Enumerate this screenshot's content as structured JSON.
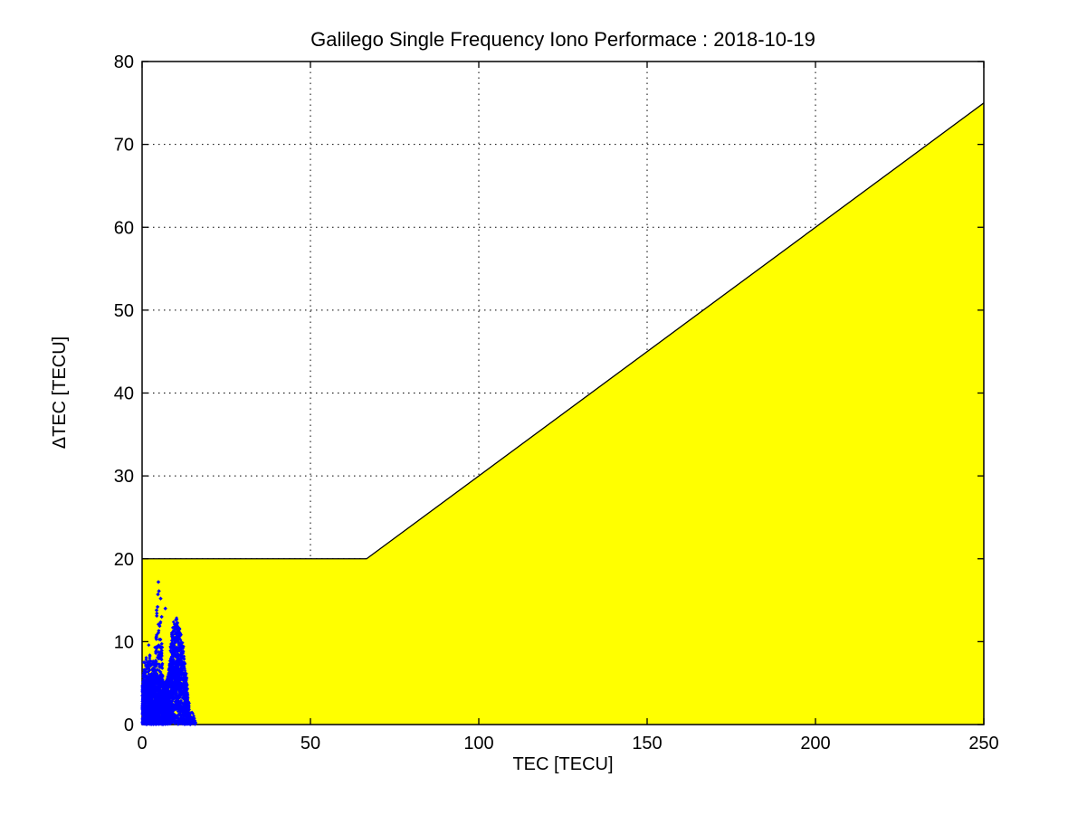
{
  "window": {
    "background_color": "#ffffff"
  },
  "chart_data": {
    "type": "scatter",
    "title": "Galilego Single Frequency Iono Performace : 2018-10-19",
    "xlabel": "TEC [TECU]",
    "ylabel": "ΔTEC [TECU]",
    "xlim": [
      0,
      250
    ],
    "ylim": [
      0,
      80
    ],
    "xticks": [
      0,
      50,
      100,
      150,
      200,
      250
    ],
    "yticks": [
      0,
      10,
      20,
      30,
      40,
      50,
      60,
      70,
      80
    ],
    "grid": "dotted",
    "legend": "none",
    "colors": {
      "spec_region_fill": "#ffff00",
      "spec_boundary_stroke": "#000000",
      "scatter_points": "#0000ff",
      "axes": "#000000",
      "background": "#ffffff"
    },
    "spec_region": {
      "description": "Yellow specification region below boundary max(20 TECU, 30% of TEC)",
      "boundary_points": [
        [
          0,
          20
        ],
        [
          66.67,
          20
        ],
        [
          250,
          75
        ]
      ],
      "filled_to_y": 0
    },
    "scatter": {
      "description": "Blue measured iono delay errors: dense mass TEC 0-14 TECU with dTEC mostly below 6, secondary solid peak near TEC 10 reaching dTEC 12.4, sparse spike near TEC 4.8 reaching dTEC 17.2, all inside spec region",
      "seed": 42,
      "marker": "diamond-dot",
      "clusters": [
        {
          "name": "dense-mass",
          "count": 2800,
          "x_range": [
            0,
            14.4
          ],
          "top_profile": [
            [
              0,
              4.8
            ],
            [
              1,
              5.0
            ],
            [
              2,
              5.2
            ],
            [
              3,
              5.4
            ],
            [
              4,
              5.2
            ],
            [
              5,
              5.0
            ],
            [
              6,
              5.0
            ],
            [
              7,
              4.8
            ],
            [
              7.5,
              5.2
            ],
            [
              8,
              7.0
            ],
            [
              8.5,
              9.8
            ],
            [
              9,
              11.5
            ],
            [
              9.5,
              12.2
            ],
            [
              10,
              12.4
            ],
            [
              10.5,
              12.2
            ],
            [
              11,
              11.6
            ],
            [
              11.5,
              10.8
            ],
            [
              12,
              9.8
            ],
            [
              12.5,
              8.2
            ],
            [
              13,
              6.5
            ],
            [
              13.3,
              5.2
            ],
            [
              13.6,
              3.6
            ],
            [
              14,
              1.8
            ],
            [
              14.4,
              0.6
            ]
          ],
          "bottom_profile": [
            [
              0,
              0
            ],
            [
              14.4,
              0
            ]
          ],
          "bias": 1.0,
          "size": 1.9,
          "edge_jitter": 0.1
        },
        {
          "name": "left-speckle",
          "count": 140,
          "x_range": [
            0.2,
            3.9
          ],
          "top_profile": [
            [
              0.2,
              6.5
            ],
            [
              1.2,
              8.2
            ],
            [
              2.2,
              9.0
            ],
            [
              3.0,
              8.0
            ],
            [
              3.9,
              6.5
            ]
          ],
          "bottom_profile": [
            [
              0.2,
              4.6
            ],
            [
              3.9,
              5.0
            ]
          ],
          "bias": 1.4,
          "size": 2.0,
          "edge_jitter": 0.12
        },
        {
          "name": "spike",
          "count": 120,
          "x_range": [
            3.7,
            6.1
          ],
          "top_profile": [
            [
              3.7,
              8.5
            ],
            [
              4.3,
              12.5
            ],
            [
              4.8,
              15.0
            ],
            [
              5.2,
              13.5
            ],
            [
              5.7,
              10.0
            ],
            [
              6.1,
              7.5
            ]
          ],
          "bottom_profile": [
            [
              3.7,
              4.8
            ],
            [
              6.1,
              4.8
            ]
          ],
          "bias": 1.7,
          "size": 2.1,
          "edge_jitter": 0.15
        },
        {
          "name": "right-fringe",
          "count": 45,
          "x_range": [
            13.9,
            15.9
          ],
          "top_profile": [
            [
              13.9,
              2.6
            ],
            [
              14.6,
              1.6
            ],
            [
              15.3,
              1.0
            ],
            [
              15.9,
              0.4
            ]
          ],
          "bottom_profile": [
            [
              13.9,
              0
            ],
            [
              15.9,
              0
            ]
          ],
          "bias": 1.0,
          "size": 1.9,
          "edge_jitter": 0.2
        }
      ],
      "outlier_points": [
        [
          4.85,
          17.2
        ],
        [
          5.0,
          16.1
        ],
        [
          4.7,
          15.7
        ],
        [
          5.5,
          15.2
        ],
        [
          4.6,
          14.2
        ],
        [
          5.8,
          13.0
        ],
        [
          4.3,
          13.8
        ],
        [
          6.9,
          14.0
        ]
      ]
    }
  }
}
